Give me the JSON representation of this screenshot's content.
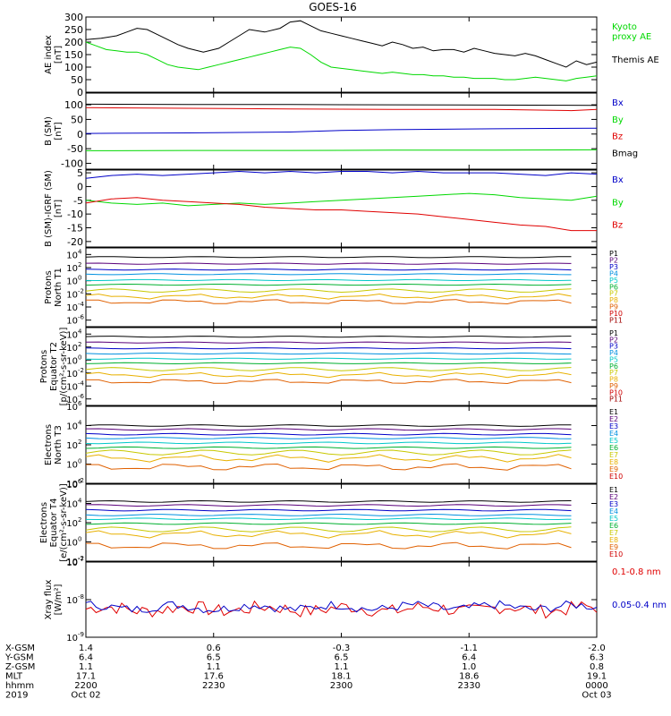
{
  "title": "GOES-16",
  "colors": {
    "black": "#000000",
    "green": "#00d800",
    "blue": "#0000c8",
    "red": "#e00000",
    "p_colors": [
      "#000000",
      "#5a007a",
      "#0000c8",
      "#0090e0",
      "#00c8c8",
      "#00b030",
      "#c8c800",
      "#e8b000",
      "#e06000",
      "#d00000",
      "#a00000"
    ]
  },
  "chart_data": [
    {
      "type": "line",
      "id": "ae",
      "ylabel": "AE index\n[nT]",
      "yscale": "linear",
      "ylim": [
        0,
        300
      ],
      "yticks": [
        0,
        50,
        100,
        150,
        200,
        250,
        300
      ],
      "legend": [
        {
          "name": "Kyoto\nproxy AE",
          "color": "#00d800"
        },
        {
          "name": "Themis AE",
          "color": "#000000"
        }
      ],
      "series": [
        {
          "name": "Themis AE",
          "color": "#000000",
          "x": [
            0,
            3,
            6,
            8,
            10,
            12,
            14,
            16,
            18,
            20,
            23,
            26,
            28,
            30,
            32,
            35,
            38,
            40,
            42,
            44,
            46,
            48,
            50,
            52,
            54,
            56,
            58,
            60,
            62,
            64,
            66,
            68,
            70,
            72,
            74,
            76,
            78,
            80,
            82,
            84,
            86,
            88,
            90,
            92,
            94,
            96,
            98,
            100
          ],
          "y": [
            210,
            215,
            225,
            240,
            255,
            250,
            230,
            210,
            190,
            175,
            160,
            175,
            200,
            225,
            250,
            240,
            255,
            280,
            285,
            265,
            245,
            235,
            225,
            215,
            205,
            195,
            185,
            200,
            190,
            175,
            180,
            165,
            170,
            170,
            160,
            175,
            165,
            155,
            150,
            145,
            155,
            145,
            130,
            115,
            100,
            125,
            110,
            120
          ]
        },
        {
          "name": "Kyoto proxy AE",
          "color": "#00d800",
          "x": [
            0,
            2,
            4,
            6,
            8,
            10,
            12,
            14,
            16,
            18,
            20,
            22,
            24,
            26,
            28,
            30,
            32,
            34,
            36,
            38,
            40,
            42,
            44,
            46,
            48,
            50,
            52,
            54,
            56,
            58,
            60,
            62,
            64,
            66,
            68,
            70,
            72,
            74,
            76,
            78,
            80,
            82,
            84,
            86,
            88,
            90,
            92,
            94,
            96,
            98,
            100
          ],
          "y": [
            200,
            185,
            170,
            165,
            160,
            160,
            150,
            130,
            110,
            100,
            95,
            90,
            100,
            110,
            120,
            130,
            140,
            150,
            160,
            170,
            180,
            175,
            150,
            120,
            100,
            95,
            90,
            85,
            80,
            75,
            80,
            75,
            70,
            70,
            65,
            65,
            60,
            60,
            55,
            55,
            55,
            50,
            50,
            55,
            60,
            55,
            50,
            45,
            55,
            60,
            65
          ]
        }
      ]
    },
    {
      "type": "line",
      "id": "b_sm",
      "ylabel": "B (SM)\n[nT]",
      "yscale": "linear",
      "ylim": [
        -120,
        140
      ],
      "yticks": [
        -100,
        -50,
        0,
        50,
        100
      ],
      "legend": [
        {
          "name": "Bx",
          "color": "#0000c8"
        },
        {
          "name": "By",
          "color": "#00d800"
        },
        {
          "name": "Bz",
          "color": "#e00000"
        },
        {
          "name": "Bmag",
          "color": "#000000"
        }
      ],
      "series": [
        {
          "name": "Bmag",
          "color": "#000000",
          "x": [
            0,
            20,
            40,
            60,
            80,
            100
          ],
          "y": [
            102,
            101,
            101,
            100,
            99,
            98
          ]
        },
        {
          "name": "Bz",
          "color": "#e00000",
          "x": [
            0,
            20,
            40,
            60,
            80,
            95,
            100
          ],
          "y": [
            90,
            88,
            86,
            84,
            84,
            80,
            84
          ]
        },
        {
          "name": "Bx",
          "color": "#0000c8",
          "x": [
            0,
            20,
            40,
            50,
            60,
            80,
            100
          ],
          "y": [
            2,
            4,
            7,
            12,
            15,
            18,
            20
          ]
        },
        {
          "name": "By",
          "color": "#00d800",
          "x": [
            0,
            20,
            40,
            60,
            80,
            100
          ],
          "y": [
            -57,
            -56,
            -56,
            -55,
            -55,
            -54
          ]
        }
      ]
    },
    {
      "type": "line",
      "id": "b_igrf",
      "ylabel": "B (SM)-IGRF (SM)\n[nT]",
      "yscale": "linear",
      "ylim": [
        -22,
        6
      ],
      "yticks": [
        -20,
        -15,
        -10,
        -5,
        0,
        5
      ],
      "legend": [
        {
          "name": "Bx",
          "color": "#0000c8"
        },
        {
          "name": "By",
          "color": "#00d800"
        },
        {
          "name": "Bz",
          "color": "#e00000"
        }
      ],
      "series": [
        {
          "name": "Bx",
          "color": "#0000c8",
          "x": [
            0,
            5,
            10,
            15,
            20,
            25,
            30,
            35,
            40,
            45,
            50,
            55,
            60,
            65,
            70,
            75,
            80,
            85,
            90,
            95,
            100
          ],
          "y": [
            3,
            4,
            4.5,
            4,
            4.5,
            5,
            5.5,
            5,
            5.5,
            5,
            5.5,
            5.5,
            5,
            5.5,
            5,
            5,
            5,
            4.5,
            4,
            5,
            4.5
          ]
        },
        {
          "name": "By",
          "color": "#00d800",
          "x": [
            0,
            5,
            10,
            15,
            20,
            25,
            30,
            35,
            40,
            45,
            50,
            55,
            60,
            65,
            70,
            75,
            80,
            85,
            90,
            95,
            100
          ],
          "y": [
            -5,
            -6,
            -6.5,
            -6,
            -7,
            -6.5,
            -6,
            -6.5,
            -6,
            -5.5,
            -5,
            -4.5,
            -4,
            -3.5,
            -3,
            -2.5,
            -3,
            -4,
            -4.5,
            -5,
            -3.5
          ]
        },
        {
          "name": "Bz",
          "color": "#e00000",
          "x": [
            0,
            5,
            10,
            15,
            20,
            25,
            30,
            35,
            40,
            45,
            50,
            55,
            60,
            65,
            70,
            75,
            80,
            85,
            90,
            95,
            100
          ],
          "y": [
            -6,
            -4.5,
            -4,
            -5,
            -5.5,
            -6,
            -6.5,
            -7.5,
            -8,
            -8.5,
            -8.5,
            -9,
            -9.5,
            -10,
            -11,
            -12,
            -13,
            -14,
            -14.5,
            -16,
            -16
          ]
        }
      ]
    },
    {
      "type": "line",
      "id": "protons_t1",
      "ylabel": "Protons\nNorth T1",
      "yscale": "log",
      "ylim": [
        -7,
        5
      ],
      "ytick_exps": [
        -6,
        -4,
        -2,
        0,
        2,
        4
      ],
      "legend_names": [
        "P1",
        "P2",
        "P3",
        "P4",
        "P5",
        "P6",
        "P7",
        "P8",
        "P9",
        "P10",
        "P11"
      ],
      "levels": [
        3.6,
        2.6,
        1.7,
        1.0,
        0.1,
        -0.6,
        -1.5,
        -2.4,
        -3.2,
        -4.6,
        -5.5
      ],
      "drawn": [
        true,
        true,
        true,
        true,
        true,
        true,
        true,
        true,
        true,
        false,
        false
      ]
    },
    {
      "type": "line",
      "id": "protons_t2",
      "ylabel": "Protons\nEquator T2\n[p/(cm²-s-sr-keV)]",
      "yscale": "log",
      "ylim": [
        -7,
        5
      ],
      "ytick_exps": [
        -6,
        -4,
        -2,
        0,
        2,
        4
      ],
      "legend_names": [
        "P1",
        "P2",
        "P3",
        "P4",
        "P5",
        "P6",
        "P7",
        "P8",
        "P9",
        "P10",
        "P11"
      ],
      "levels": [
        3.6,
        2.7,
        1.8,
        1.0,
        0.2,
        -0.5,
        -1.4,
        -2.3,
        -3.3,
        -4.6,
        -5.5
      ],
      "drawn": [
        true,
        true,
        true,
        true,
        true,
        true,
        true,
        true,
        true,
        false,
        false
      ]
    },
    {
      "type": "line",
      "id": "electrons_t3",
      "ylabel": "Electrons\nNorth T3",
      "yscale": "log",
      "ylim": [
        -2,
        6
      ],
      "ytick_exps": [
        -2,
        0,
        2,
        4,
        6
      ],
      "legend_names": [
        "E1",
        "E2",
        "E3",
        "E4",
        "E5",
        "E6",
        "E7",
        "E8",
        "E9",
        "E10"
      ],
      "levels": [
        4.0,
        3.6,
        3.1,
        2.7,
        2.2,
        1.7,
        1.2,
        0.6,
        -0.3,
        -2.5
      ],
      "drawn": [
        true,
        true,
        true,
        true,
        true,
        true,
        true,
        true,
        true,
        false
      ]
    },
    {
      "type": "line",
      "id": "electrons_t4",
      "ylabel": "Electrons\nEquator T4\n[e/(cm²-s-sr-keV)]",
      "yscale": "log",
      "ylim": [
        -2,
        6
      ],
      "ytick_exps": [
        -2,
        0,
        2,
        4,
        6
      ],
      "legend_names": [
        "E1",
        "E2",
        "E3",
        "E4",
        "E5",
        "E6",
        "E7",
        "E8",
        "E9",
        "E10"
      ],
      "levels": [
        4.2,
        3.8,
        3.3,
        2.8,
        2.4,
        1.9,
        1.3,
        0.8,
        -0.4,
        -2.5
      ],
      "drawn": [
        true,
        true,
        true,
        true,
        true,
        true,
        true,
        true,
        true,
        false
      ]
    },
    {
      "type": "line",
      "id": "xray",
      "ylabel": "Xray flux\n[W/m²]",
      "yscale": "log",
      "ylim": [
        -9,
        -7
      ],
      "ytick_exps": [
        -9,
        -8,
        -7
      ],
      "legend": [
        {
          "name": "0.1-0.8 nm",
          "color": "#e00000"
        },
        {
          "name": "0.05-0.4 nm",
          "color": "#0000c8"
        }
      ],
      "series_log": [
        {
          "name": "0.1-0.8 nm",
          "color": "#e00000",
          "base": -8.25,
          "amp": 0.18
        },
        {
          "name": "0.05-0.4 nm",
          "color": "#0000c8",
          "base": -8.2,
          "amp": 0.12
        }
      ]
    }
  ],
  "x_axis": {
    "ticks": [
      0,
      25,
      50,
      75,
      100
    ],
    "rows": [
      {
        "label": "X-GSM",
        "values": [
          "1.4",
          "0.6",
          "-0.3",
          "-1.1",
          "-2.0"
        ]
      },
      {
        "label": "Y-GSM",
        "values": [
          "6.4",
          "6.5",
          "6.5",
          "6.4",
          "6.3"
        ]
      },
      {
        "label": "Z-GSM",
        "values": [
          "1.1",
          "1.1",
          "1.1",
          "1.0",
          "0.8"
        ]
      },
      {
        "label": "MLT",
        "values": [
          "17.1",
          "17.6",
          "18.1",
          "18.6",
          "19.1"
        ]
      },
      {
        "label": "hhmm",
        "values": [
          "2200",
          "2230",
          "2300",
          "2330",
          "0000"
        ]
      },
      {
        "label": "2019",
        "values": [
          "Oct 02",
          "",
          "",
          "",
          "Oct 03"
        ]
      }
    ]
  }
}
